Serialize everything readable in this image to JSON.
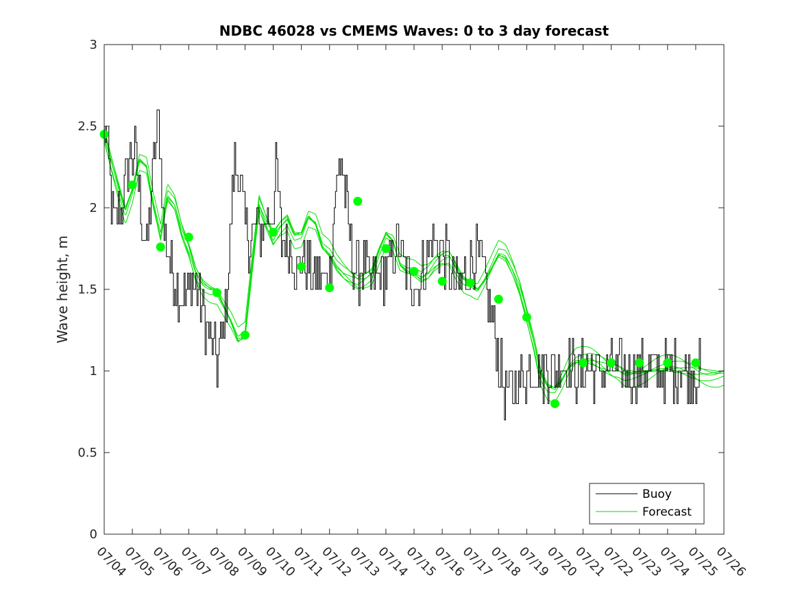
{
  "chart_data": {
    "type": "line",
    "title": "NDBC 46028 vs CMEMS Waves: 0 to 3 day forecast",
    "xlabel": "",
    "ylabel": "Wave height, m",
    "x_ticks": [
      "07/04",
      "07/05",
      "07/06",
      "07/07",
      "07/08",
      "07/09",
      "07/10",
      "07/11",
      "07/12",
      "07/13",
      "07/14",
      "07/15",
      "07/16",
      "07/17",
      "07/18",
      "07/19",
      "07/20",
      "07/21",
      "07/22",
      "07/23",
      "07/24",
      "07/25",
      "07/26"
    ],
    "xlim": [
      "07/04",
      "07/26"
    ],
    "ylim": [
      0,
      3
    ],
    "y_ticks": [
      "0",
      "0.5",
      "1",
      "1.5",
      "2",
      "2.5",
      "3"
    ],
    "grid": false,
    "legend": {
      "location": "bottom-right",
      "entries": [
        {
          "label": "Buoy",
          "color": "#000000"
        },
        {
          "label": "Forecast",
          "color": "#00dd00"
        }
      ]
    },
    "colors": {
      "buoy": "#000000",
      "forecast": "#00e000",
      "forecast_start": "#00ff00"
    },
    "buoy_key_points": {
      "x_day": [
        0.0,
        0.1,
        0.2,
        0.4,
        0.6,
        0.8,
        0.9,
        1.1,
        1.3,
        1.5,
        1.7,
        1.9,
        2.0,
        2.1,
        2.3,
        2.5,
        2.7,
        2.9,
        3.0,
        3.2,
        3.4,
        3.6,
        3.8,
        4.0,
        4.2,
        4.4,
        4.6,
        4.8,
        5.0,
        5.2,
        5.4,
        5.6,
        5.8,
        6.0,
        6.1,
        6.2,
        6.3,
        6.5,
        6.7,
        6.9,
        7.0,
        7.2,
        7.4,
        7.6,
        7.8,
        8.0,
        8.2,
        8.4,
        8.6,
        8.8,
        9.0,
        9.2,
        9.4,
        9.6,
        9.8,
        10.0,
        10.2,
        10.4,
        10.6,
        10.8,
        11.0,
        11.2,
        11.4,
        11.6,
        11.8,
        12.0,
        12.2,
        12.4,
        12.6,
        12.8,
        13.0,
        13.2,
        13.4,
        13.6,
        13.8,
        14.0,
        14.2,
        14.4,
        14.6,
        14.8,
        15.0,
        15.2,
        15.4,
        15.6,
        15.8,
        16.0,
        16.2,
        16.4,
        16.6,
        16.8,
        17.0,
        17.2,
        17.4,
        17.6,
        17.8,
        18.0,
        18.2,
        18.4,
        18.6,
        18.8,
        19.0,
        19.2,
        19.4,
        19.6,
        19.8,
        20.0,
        20.2,
        20.4,
        20.6,
        20.8,
        21.0,
        21.2,
        21.4,
        21.6,
        21.8,
        22.0
      ],
      "y": [
        2.45,
        2.4,
        2.1,
        1.9,
        2.0,
        2.2,
        2.35,
        2.3,
        2.0,
        1.75,
        2.2,
        2.55,
        2.3,
        1.85,
        1.7,
        1.55,
        1.45,
        1.45,
        1.5,
        1.55,
        1.45,
        1.3,
        1.15,
        1.05,
        1.2,
        1.6,
        2.3,
        2.2,
        1.85,
        1.8,
        1.9,
        1.85,
        1.95,
        2.0,
        2.3,
        1.95,
        1.8,
        1.8,
        1.7,
        1.6,
        1.7,
        1.65,
        1.55,
        1.6,
        1.55,
        1.6,
        2.1,
        2.3,
        2.0,
        1.7,
        1.6,
        1.65,
        1.55,
        1.55,
        1.6,
        1.6,
        1.7,
        1.8,
        1.65,
        1.55,
        1.55,
        1.55,
        1.7,
        1.8,
        1.8,
        1.75,
        1.65,
        1.55,
        1.5,
        1.6,
        1.65,
        1.7,
        1.65,
        1.45,
        1.3,
        1.05,
        0.9,
        0.85,
        0.9,
        0.95,
        1.0,
        1.0,
        1.0,
        1.0,
        1.0,
        1.0,
        1.05,
        1.05,
        1.0,
        1.0,
        1.0,
        1.0,
        1.0,
        1.0,
        1.0,
        1.0,
        1.0,
        1.0,
        1.0,
        1.0,
        1.0,
        1.0,
        1.0,
        1.0,
        1.0,
        1.0,
        1.0,
        1.0,
        1.0,
        1.0,
        1.0,
        1.0,
        1.0,
        1.0,
        1.0,
        1.0
      ]
    },
    "forecast_key_points": {
      "x_day": [
        0.0,
        0.25,
        0.5,
        0.75,
        1.0,
        1.25,
        1.5,
        1.75,
        2.0,
        2.25,
        2.5,
        2.75,
        3.0,
        3.25,
        3.5,
        3.75,
        4.0,
        4.25,
        4.5,
        4.75,
        5.0,
        5.25,
        5.5,
        5.75,
        6.0,
        6.25,
        6.5,
        6.75,
        7.0,
        7.25,
        7.5,
        7.75,
        8.0,
        8.25,
        8.5,
        8.75,
        9.0,
        9.25,
        9.5,
        9.75,
        10.0,
        10.25,
        10.5,
        10.75,
        11.0,
        11.25,
        11.5,
        11.75,
        12.0,
        12.25,
        12.5,
        12.75,
        13.0,
        13.25,
        13.5,
        13.75,
        14.0,
        14.25,
        14.5,
        14.75,
        15.0,
        15.25,
        15.5,
        15.75,
        16.0,
        16.25,
        16.5,
        16.75,
        17.0,
        17.25,
        17.5,
        17.75,
        18.0,
        18.25,
        18.5,
        18.75,
        19.0,
        19.25,
        19.5,
        19.75,
        20.0,
        20.25,
        20.5,
        20.75,
        21.0,
        21.25,
        21.5,
        21.75,
        22.0
      ],
      "y": [
        2.45,
        2.3,
        2.15,
        2.0,
        2.12,
        2.3,
        2.25,
        2.0,
        1.8,
        2.05,
        2.0,
        1.85,
        1.75,
        1.62,
        1.55,
        1.52,
        1.5,
        1.4,
        1.3,
        1.18,
        1.2,
        1.6,
        2.0,
        1.9,
        1.82,
        1.9,
        1.95,
        1.85,
        1.85,
        1.95,
        1.9,
        1.75,
        1.7,
        1.62,
        1.58,
        1.56,
        1.55,
        1.58,
        1.62,
        1.75,
        1.85,
        1.8,
        1.65,
        1.6,
        1.58,
        1.55,
        1.58,
        1.65,
        1.7,
        1.72,
        1.65,
        1.58,
        1.55,
        1.5,
        1.55,
        1.62,
        1.7,
        1.68,
        1.6,
        1.5,
        1.35,
        1.2,
        1.0,
        0.92,
        0.9,
        0.95,
        1.02,
        1.05,
        1.05,
        1.05,
        1.04,
        1.03,
        1.02,
        1.02,
        1.0,
        1.0,
        1.0,
        1.0,
        1.0,
        1.0,
        1.0,
        1.0,
        1.0,
        1.0,
        1.0,
        1.0,
        1.0,
        1.0,
        1.0
      ]
    },
    "forecast_start_points": {
      "x_day": [
        0,
        1,
        2,
        3,
        4,
        5,
        6,
        7,
        8,
        9,
        10,
        11,
        12,
        13,
        14,
        15,
        16,
        17,
        18,
        19,
        20,
        21
      ],
      "y": [
        2.45,
        2.14,
        1.76,
        1.82,
        1.48,
        1.22,
        1.85,
        1.64,
        1.51,
        2.04,
        1.75,
        1.61,
        1.55,
        1.54,
        1.44,
        1.33,
        0.8,
        1.05,
        1.05,
        1.05,
        1.05,
        1.05
      ]
    }
  }
}
